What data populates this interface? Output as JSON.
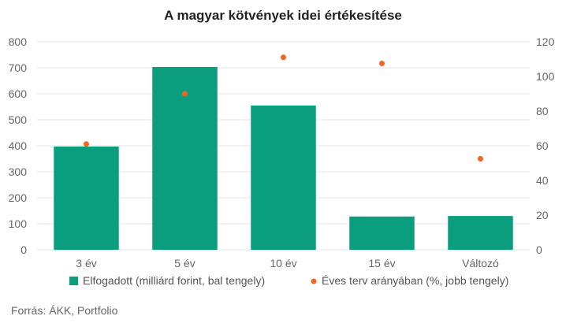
{
  "chart_data": {
    "type": "bar",
    "title": "A magyar kötvények idei értékesítése",
    "categories": [
      "3 év",
      "5 év",
      "10 év",
      "15 év",
      "Változó"
    ],
    "series": [
      {
        "name": "Elfogadott (milliárd forint, bal tengely)",
        "kind": "bar",
        "axis": "left",
        "color": "#0a9e7e",
        "values": [
          397,
          703,
          555,
          128,
          130
        ]
      },
      {
        "name": "Éves terv arányában (%, jobb tengely)",
        "kind": "scatter",
        "axis": "right",
        "color": "#f26522",
        "values": [
          61,
          90,
          111,
          107.5,
          52.5
        ]
      }
    ],
    "left_axis": {
      "ylim": [
        0,
        800
      ],
      "ticks": [
        "0",
        "100",
        "200",
        "300",
        "400",
        "500",
        "600",
        "700",
        "800"
      ]
    },
    "right_axis": {
      "ylim": [
        0,
        120
      ],
      "ticks": [
        "0",
        "20",
        "40",
        "60",
        "80",
        "100",
        "120"
      ]
    },
    "grid": true,
    "legend_position": "bottom"
  },
  "source": "Forrás: ÁKK, Portfolio"
}
